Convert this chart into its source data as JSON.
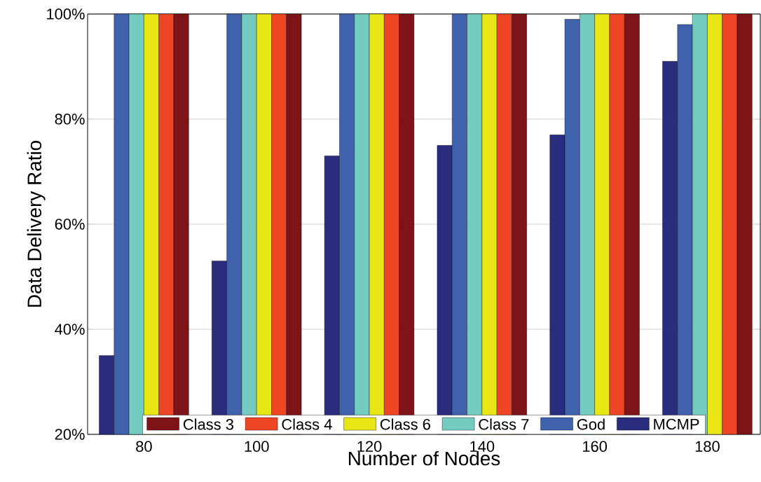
{
  "chart_data": {
    "type": "bar",
    "xlabel": "Number of Nodes",
    "ylabel": "Data Delivery Ratio",
    "categories": [
      "80",
      "100",
      "120",
      "140",
      "160",
      "180"
    ],
    "series": [
      {
        "name": "MCMP",
        "color": "#2a2d7e",
        "values": [
          35,
          53,
          73,
          75,
          77,
          91
        ]
      },
      {
        "name": "God",
        "color": "#4062ad",
        "values": [
          100,
          100,
          100,
          100,
          99,
          98
        ]
      },
      {
        "name": "Class 7",
        "color": "#74cbc0",
        "values": [
          100,
          100,
          100,
          100,
          100,
          100
        ]
      },
      {
        "name": "Class 6",
        "color": "#e8e615",
        "values": [
          100,
          100,
          100,
          100,
          100,
          100
        ]
      },
      {
        "name": "Class 4",
        "color": "#ee4624",
        "values": [
          100,
          100,
          100,
          100,
          100,
          100
        ]
      },
      {
        "name": "Class 3",
        "color": "#7f1418",
        "values": [
          100,
          100,
          100,
          100,
          100,
          100
        ]
      }
    ],
    "ylim": [
      20,
      100
    ],
    "yticks": [
      {
        "value": 20,
        "label": "20%"
      },
      {
        "value": 40,
        "label": "40%"
      },
      {
        "value": 60,
        "label": "60%"
      },
      {
        "value": 80,
        "label": "80%"
      },
      {
        "value": 100,
        "label": "100%"
      }
    ],
    "grid": "y",
    "legend": "bottom"
  }
}
